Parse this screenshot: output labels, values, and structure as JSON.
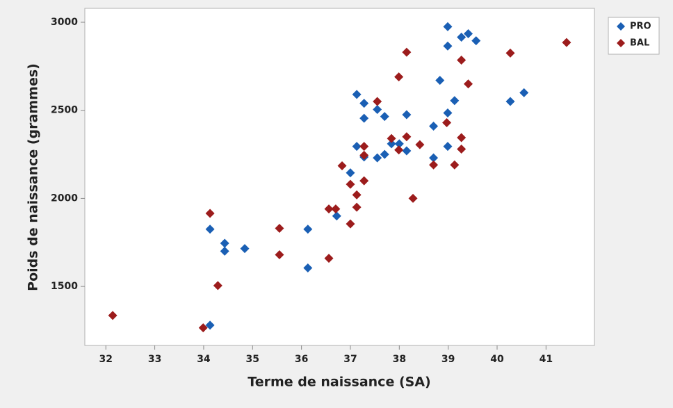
{
  "chart_data": {
    "type": "scatter",
    "x_label": "Terme de naissance (SA)",
    "y_label": "Poids de naissance (grammes)",
    "xlim": [
      31.57,
      41.99
    ],
    "ylim": [
      1165,
      3079
    ],
    "xticks": [
      32,
      33,
      34,
      35,
      36,
      37,
      38,
      39,
      40,
      41
    ],
    "yticks": [
      1500,
      2000,
      2500,
      3000
    ],
    "grid": false,
    "legend": "outside-right",
    "series": [
      {
        "name": "PRO",
        "color": "#1a5fb4",
        "x": [
          34.13,
          34.13,
          34.43,
          34.43,
          34.84,
          36.13,
          36.13,
          36.72,
          37.0,
          37.13,
          37.13,
          37.28,
          37.28,
          37.28,
          37.55,
          37.55,
          37.7,
          37.7,
          37.84,
          38.0,
          38.15,
          38.15,
          38.7,
          38.7,
          38.83,
          38.99,
          38.99,
          38.99,
          38.99,
          39.13,
          39.27,
          39.41,
          39.57,
          40.27,
          40.55
        ],
        "values": [
          1280,
          1825,
          1745,
          1700,
          1715,
          1825,
          1605,
          1900,
          2145,
          2590,
          2295,
          2540,
          2455,
          2235,
          2505,
          2230,
          2465,
          2250,
          2310,
          2310,
          2475,
          2270,
          2410,
          2230,
          2670,
          2975,
          2865,
          2485,
          2295,
          2555,
          2915,
          2935,
          2895,
          2550,
          2600
        ]
      },
      {
        "name": "BAL",
        "color": "#9c1c1c",
        "x": [
          32.14,
          33.99,
          34.13,
          34.29,
          35.55,
          35.55,
          36.56,
          36.56,
          36.7,
          36.83,
          37.0,
          37.0,
          37.13,
          37.13,
          37.28,
          37.28,
          37.28,
          37.55,
          37.84,
          37.99,
          37.99,
          38.15,
          38.15,
          38.28,
          38.42,
          38.7,
          38.97,
          39.13,
          39.27,
          39.27,
          39.27,
          39.41,
          40.27,
          41.42
        ],
        "values": [
          1335,
          1265,
          1915,
          1505,
          1830,
          1680,
          1940,
          1660,
          1940,
          2185,
          2080,
          1855,
          2020,
          1950,
          2295,
          2245,
          2100,
          2550,
          2340,
          2690,
          2275,
          2830,
          2350,
          2000,
          2305,
          2190,
          2430,
          2190,
          2785,
          2345,
          2280,
          2650,
          2825,
          2885
        ]
      }
    ]
  }
}
